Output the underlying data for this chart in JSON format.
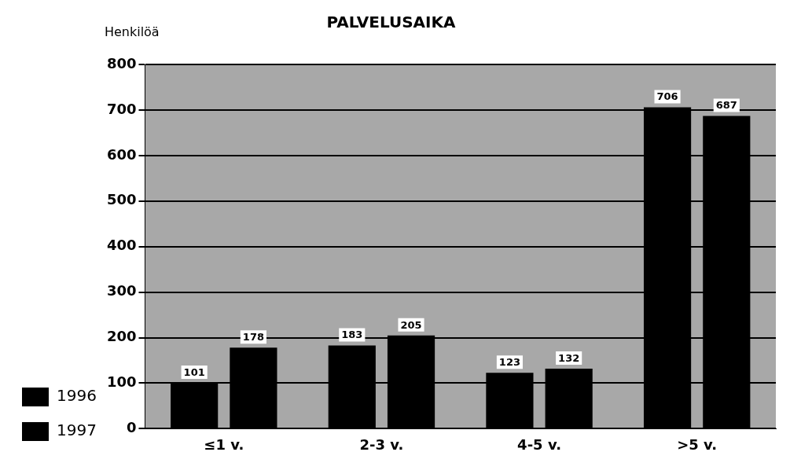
{
  "chart_data": {
    "type": "bar",
    "title": "PALVELUSAIKA",
    "ylabel": "Henkilöä",
    "categories": [
      "≤1 v.",
      "2-3 v.",
      "4-5 v.",
      ">5 v."
    ],
    "series": [
      {
        "name": "1996",
        "color": "#000000",
        "values": [
          101,
          183,
          123,
          706
        ]
      },
      {
        "name": "1997",
        "color": "#000000",
        "values": [
          178,
          205,
          132,
          687
        ]
      }
    ],
    "ylim": [
      0,
      800
    ],
    "yticks": [
      0,
      100,
      200,
      300,
      400,
      500,
      600,
      700,
      800
    ],
    "grid": "y",
    "legend": "bottom left",
    "data_labels": true
  }
}
